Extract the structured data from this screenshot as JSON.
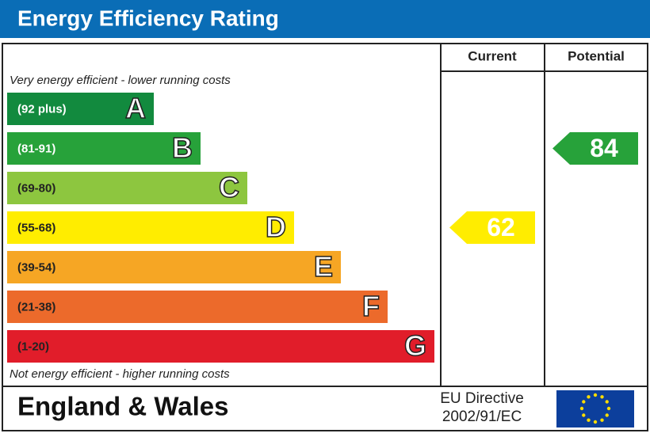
{
  "header": {
    "title": "Energy Efficiency Rating"
  },
  "columns": {
    "current": "Current",
    "potential": "Potential"
  },
  "top_note": "Very energy efficient - lower running costs",
  "bottom_note": "Not energy efficient - higher running costs",
  "bands": [
    {
      "range": "(92 plus)",
      "letter": "A",
      "color": "#128a3e"
    },
    {
      "range": "(81-91)",
      "letter": "B",
      "color": "#27a23a"
    },
    {
      "range": "(69-80)",
      "letter": "C",
      "color": "#8dc63f"
    },
    {
      "range": "(55-68)",
      "letter": "D",
      "color": "#ffed00"
    },
    {
      "range": "(39-54)",
      "letter": "E",
      "color": "#f6a624"
    },
    {
      "range": "(21-38)",
      "letter": "F",
      "color": "#ec6a2b"
    },
    {
      "range": "(1-20)",
      "letter": "G",
      "color": "#e11d2a"
    }
  ],
  "ratings": {
    "current": 62,
    "potential": 84
  },
  "footer": {
    "region": "England & Wales",
    "directive_line1": "EU Directive",
    "directive_line2": "2002/91/EC"
  }
}
